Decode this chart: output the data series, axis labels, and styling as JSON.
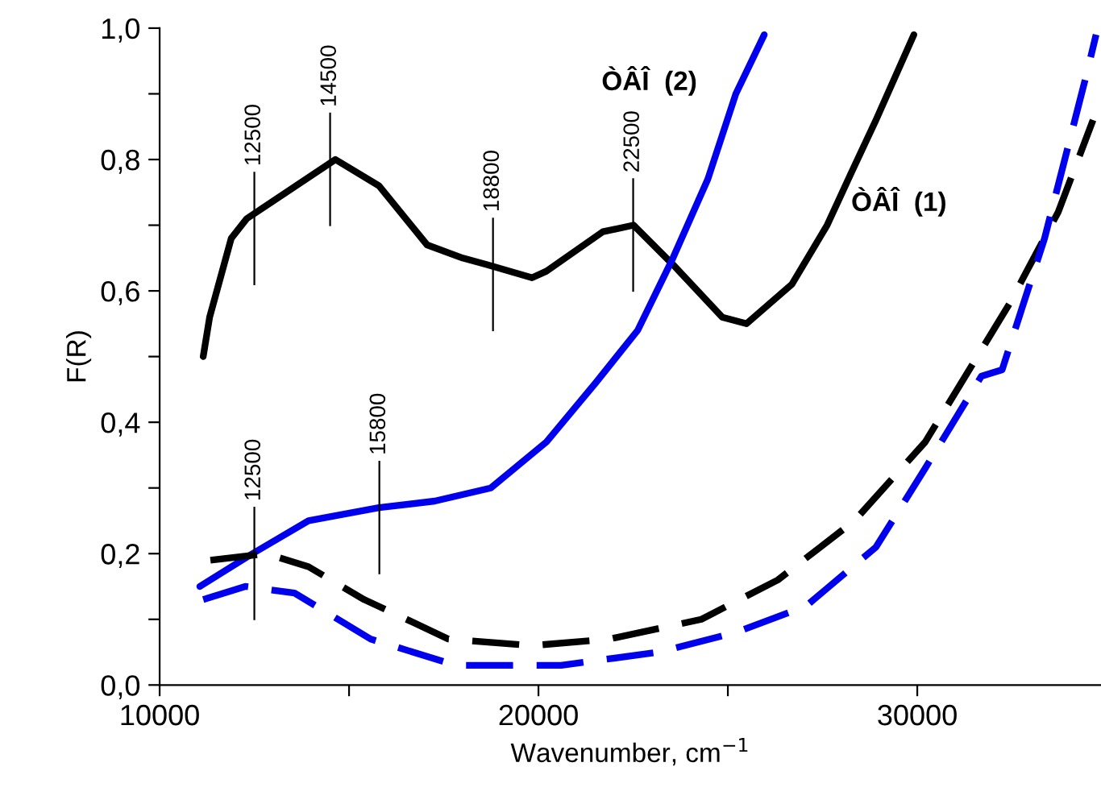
{
  "chart_data": {
    "type": "line",
    "xlabel": "Wavenumber, cm$^{−1}$",
    "ylabel": "F(R)",
    "xlim": [
      10000,
      34850
    ],
    "ylim": [
      0,
      1.0
    ],
    "xticks": [
      10000,
      {
        "value": 15000,
        "label": null
      },
      20000,
      {
        "value": 25000,
        "label": null
      },
      30000
    ],
    "yticks": [
      {
        "value": 0,
        "label": "0,0"
      },
      {
        "value": 0.1,
        "label": null
      },
      {
        "value": 0.2,
        "label": "0,2"
      },
      {
        "value": 0.3,
        "label": null
      },
      {
        "value": 0.4,
        "label": "0,4"
      },
      {
        "value": 0.5,
        "label": null
      },
      {
        "value": 0.6,
        "label": "0,6"
      },
      {
        "value": 0.7,
        "label": null
      },
      {
        "value": 0.8,
        "label": "0,8"
      },
      {
        "value": 0.9,
        "label": null
      },
      {
        "value": 1.0,
        "label": "1,0"
      }
    ],
    "grid": false,
    "legend": false,
    "marker": "none",
    "series": [
      {
        "name": "ÒÂÎ  (1)",
        "color": "#000000",
        "line_style": "solid",
        "x": [
          11150,
          11320,
          11890,
          12300,
          14640,
          15790,
          17060,
          18000,
          18640,
          19830,
          20210,
          21700,
          22510,
          23550,
          24850,
          25490,
          26690,
          27620,
          28260,
          28910,
          29910
        ],
        "values": [
          0.5,
          0.56,
          0.68,
          0.71,
          0.8,
          0.76,
          0.67,
          0.65,
          0.64,
          0.62,
          0.63,
          0.69,
          0.7,
          0.64,
          0.56,
          0.55,
          0.61,
          0.7,
          0.78,
          0.86,
          0.99
        ]
      },
      {
        "name": "ÒÂÎ  (2)",
        "color": "#0000ee",
        "line_style": "solid",
        "x": [
          11060,
          12450,
          13930,
          15790,
          17260,
          18740,
          20210,
          21510,
          22620,
          23550,
          24470,
          25210,
          25960
        ],
        "values": [
          0.15,
          0.2,
          0.25,
          0.27,
          0.28,
          0.3,
          0.37,
          0.46,
          0.54,
          0.65,
          0.77,
          0.9,
          0.99
        ]
      },
      {
        "color": "#000000",
        "line_style": "dashed",
        "x": [
          11340,
          12810,
          13930,
          15400,
          16150,
          17620,
          19830,
          21870,
          24300,
          26320,
          28340,
          30210,
          32430,
          33720,
          34640
        ],
        "values": [
          0.19,
          0.2,
          0.18,
          0.13,
          0.11,
          0.07,
          0.06,
          0.07,
          0.1,
          0.16,
          0.25,
          0.37,
          0.58,
          0.72,
          0.86
        ]
      },
      {
        "color": "#0000ee",
        "line_style": "dashed",
        "x": [
          11150,
          12260,
          13560,
          15570,
          17810,
          18740,
          20600,
          23180,
          25210,
          27060,
          28910,
          30210,
          31690,
          32240,
          33360,
          34470,
          34720
        ],
        "values": [
          0.13,
          0.15,
          0.14,
          0.07,
          0.03,
          0.03,
          0.03,
          0.05,
          0.08,
          0.12,
          0.21,
          0.33,
          0.47,
          0.48,
          0.68,
          0.93,
          0.99
        ]
      }
    ],
    "annotations": [
      {
        "text": "12500",
        "x": 12500,
        "y": 0.71
      },
      {
        "text": "14500",
        "x": 14500,
        "y": 0.8
      },
      {
        "text": "18800",
        "x": 18800,
        "y": 0.64
      },
      {
        "text": "22500",
        "x": 22500,
        "y": 0.7
      },
      {
        "text": "12500",
        "x": 12500,
        "y": 0.2
      },
      {
        "text": "15800",
        "x": 15800,
        "y": 0.27
      }
    ]
  }
}
